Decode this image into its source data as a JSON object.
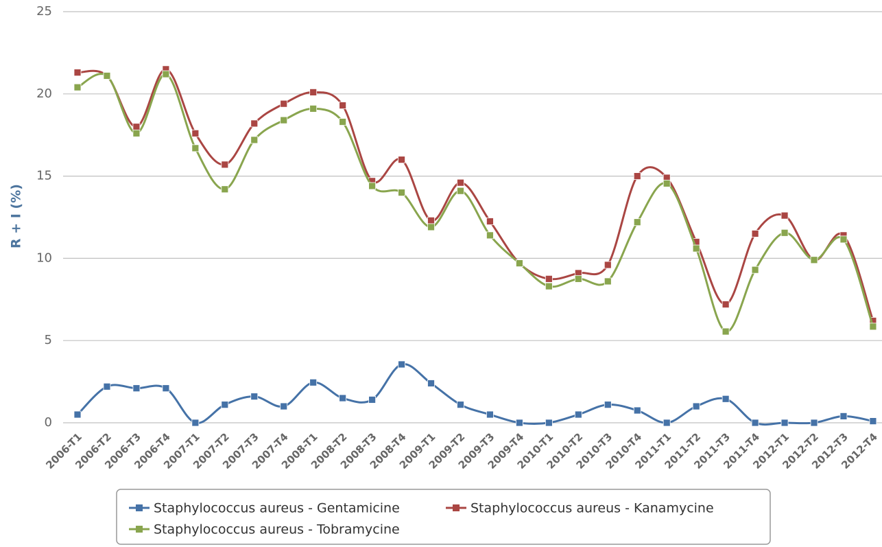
{
  "chart_data": {
    "type": "spline",
    "y_axis_label": "R + I (%)",
    "categories": [
      "2006-T1",
      "2006-T2",
      "2006-T3",
      "2006-T4",
      "2007-T1",
      "2007-T2",
      "2007-T3",
      "2007-T4",
      "2008-T1",
      "2008-T2",
      "2008-T3",
      "2008-T4",
      "2009-T1",
      "2009-T2",
      "2009-T3",
      "2009-T4",
      "2010-T1",
      "2010-T2",
      "2010-T3",
      "2010-T4",
      "2011-T1",
      "2011-T2",
      "2011-T3",
      "2011-T4",
      "2012-T1",
      "2012-T2",
      "2012-T3",
      "2012-T4"
    ],
    "series": [
      {
        "name": "Staphylococcus aureus - Gentamicine",
        "color": "#4572a7",
        "values": [
          0.5,
          2.2,
          2.1,
          2.1,
          0,
          1.1,
          1.6,
          1.0,
          2.45,
          1.5,
          1.4,
          3.55,
          2.4,
          1.1,
          0.5,
          0,
          0,
          0.5,
          1.1,
          0.75,
          0,
          1.0,
          1.45,
          0,
          0,
          0,
          0.4,
          0.1
        ]
      },
      {
        "name": "Staphylococcus aureus - Kanamycine",
        "color": "#aa4643",
        "values": [
          21.3,
          21.1,
          18.0,
          21.5,
          17.6,
          15.7,
          18.2,
          19.4,
          20.1,
          19.3,
          14.7,
          16.0,
          12.3,
          14.6,
          12.25,
          9.7,
          8.75,
          9.1,
          9.6,
          15.0,
          14.9,
          11.0,
          7.2,
          11.5,
          12.6,
          9.9,
          11.4,
          6.2
        ]
      },
      {
        "name": "Staphylococcus aureus - Tobramycine",
        "color": "#89a54e",
        "values": [
          20.4,
          21.1,
          17.6,
          21.2,
          16.7,
          14.2,
          17.2,
          18.4,
          19.1,
          18.3,
          14.4,
          14.0,
          11.9,
          14.1,
          11.4,
          9.7,
          8.3,
          8.75,
          8.6,
          12.2,
          14.55,
          10.6,
          5.55,
          9.3,
          11.55,
          9.9,
          11.15,
          5.85
        ]
      }
    ],
    "ylim": [
      0,
      25
    ],
    "yticks": [
      0,
      5,
      10,
      15,
      20,
      25
    ],
    "grid": true,
    "legend": "bottom"
  }
}
